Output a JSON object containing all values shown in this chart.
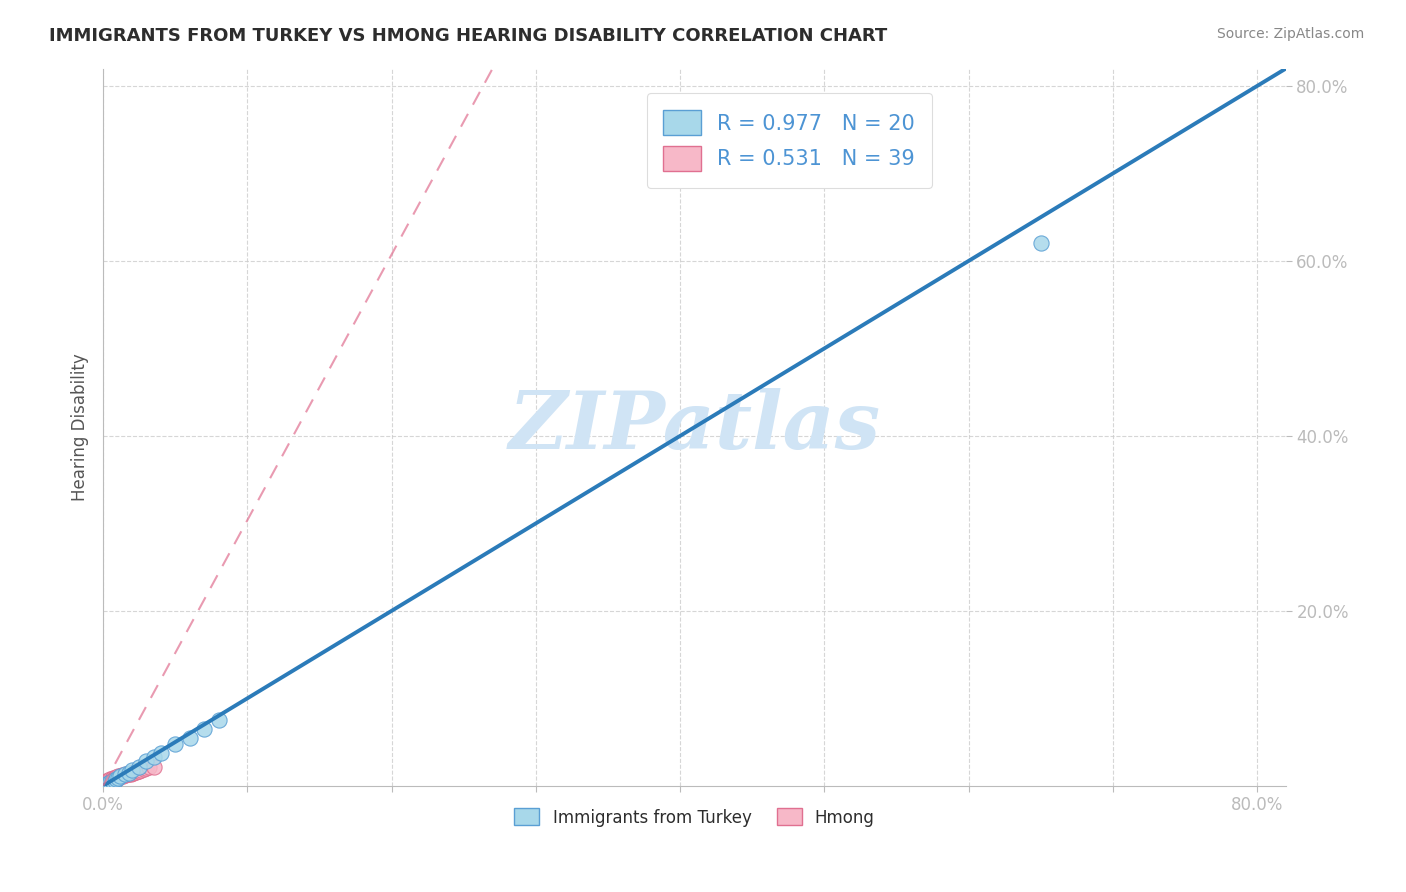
{
  "title": "IMMIGRANTS FROM TURKEY VS HMONG HEARING DISABILITY CORRELATION CHART",
  "source": "Source: ZipAtlas.com",
  "xlabel": "",
  "ylabel": "Hearing Disability",
  "xlim": [
    0.0,
    0.82
  ],
  "ylim": [
    0.0,
    0.82
  ],
  "xtick_labels": [
    "0.0%",
    "",
    "",
    "",
    "",
    "",
    "",
    "",
    "80.0%"
  ],
  "xtick_vals": [
    0.0,
    0.1,
    0.2,
    0.3,
    0.4,
    0.5,
    0.6,
    0.7,
    0.8
  ],
  "ytick_labels": [
    "20.0%",
    "40.0%",
    "60.0%",
    "80.0%"
  ],
  "ytick_vals": [
    0.2,
    0.4,
    0.6,
    0.8
  ],
  "turkey_R": 0.977,
  "turkey_N": 20,
  "hmong_R": 0.531,
  "hmong_N": 39,
  "turkey_color": "#a8d8ea",
  "turkey_line_color": "#2b7bb9",
  "turkey_edge_color": "#5a9fd4",
  "hmong_color": "#f7b8c8",
  "hmong_line_color": "#e07090",
  "hmong_edge_color": "#e07090",
  "watermark": "ZIPatlas",
  "watermark_color": "#d0e4f5",
  "legend_label_turkey": "Immigrants from Turkey",
  "legend_label_hmong": "Hmong",
  "turkey_scatter_x": [
    0.002,
    0.004,
    0.005,
    0.006,
    0.008,
    0.009,
    0.01,
    0.012,
    0.015,
    0.018,
    0.02,
    0.025,
    0.03,
    0.035,
    0.04,
    0.05,
    0.06,
    0.07,
    0.08,
    0.65
  ],
  "turkey_scatter_y": [
    0.002,
    0.003,
    0.004,
    0.005,
    0.006,
    0.008,
    0.009,
    0.011,
    0.013,
    0.015,
    0.018,
    0.022,
    0.028,
    0.033,
    0.038,
    0.048,
    0.055,
    0.065,
    0.075,
    0.62
  ],
  "hmong_scatter_x": [
    0.001,
    0.002,
    0.002,
    0.003,
    0.003,
    0.004,
    0.004,
    0.005,
    0.005,
    0.006,
    0.006,
    0.007,
    0.007,
    0.008,
    0.008,
    0.009,
    0.009,
    0.01,
    0.01,
    0.011,
    0.012,
    0.013,
    0.014,
    0.015,
    0.016,
    0.017,
    0.018,
    0.019,
    0.02,
    0.021,
    0.022,
    0.023,
    0.024,
    0.025,
    0.026,
    0.028,
    0.03,
    0.032,
    0.035
  ],
  "hmong_scatter_y": [
    0.003,
    0.004,
    0.005,
    0.004,
    0.006,
    0.005,
    0.007,
    0.006,
    0.008,
    0.006,
    0.008,
    0.007,
    0.009,
    0.007,
    0.009,
    0.008,
    0.01,
    0.009,
    0.011,
    0.01,
    0.011,
    0.012,
    0.011,
    0.012,
    0.013,
    0.013,
    0.014,
    0.014,
    0.015,
    0.015,
    0.016,
    0.016,
    0.017,
    0.017,
    0.018,
    0.019,
    0.02,
    0.021,
    0.022
  ],
  "background_color": "#ffffff",
  "grid_color": "#cccccc",
  "title_color": "#2d2d2d",
  "axis_label_color": "#555555",
  "tick_color": "#4d94d4",
  "title_fontsize": 13,
  "source_fontsize": 10,
  "turkey_line_x0": 0.0,
  "turkey_line_x1": 0.82,
  "turkey_line_y0": 0.0,
  "turkey_line_y1": 0.82,
  "hmong_line_x0": 0.0,
  "hmong_line_x1": 0.27,
  "hmong_line_y0": 0.0,
  "hmong_line_y1": 0.82
}
